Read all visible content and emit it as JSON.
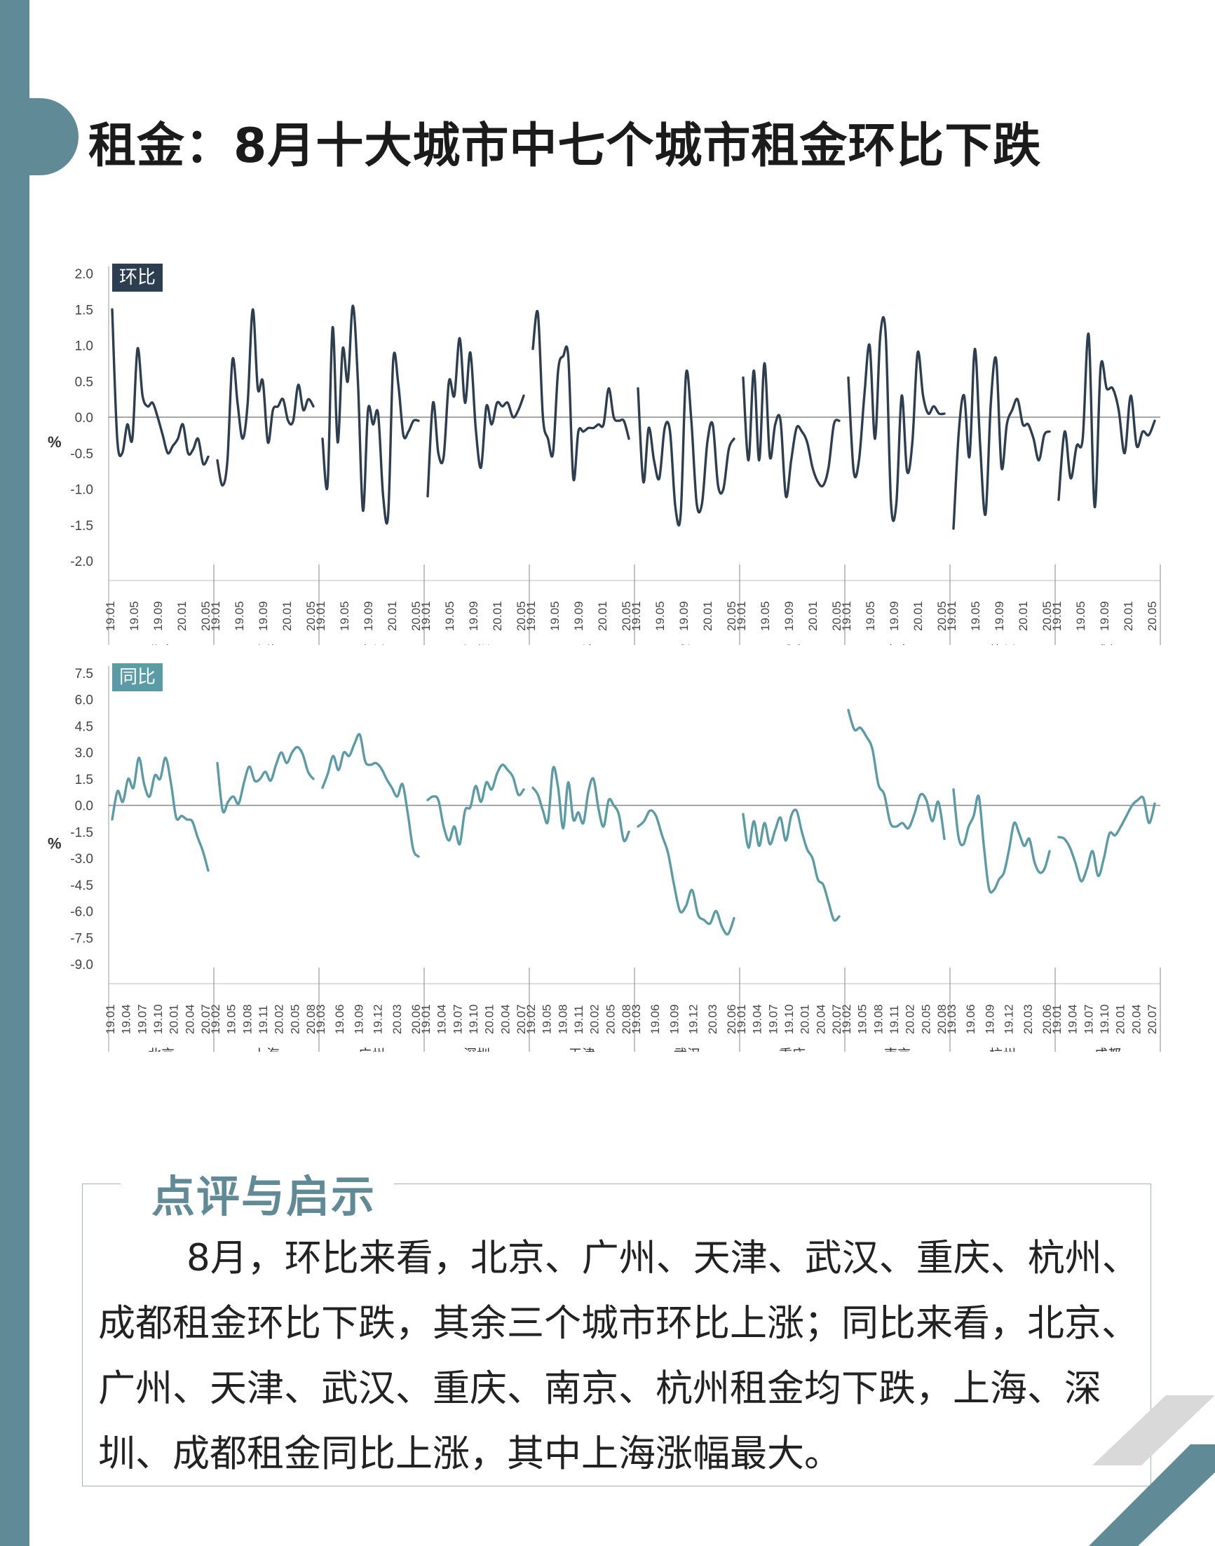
{
  "title": "租金：8月十大城市中七个城市租金环比下跌",
  "comment": {
    "heading": "点评与启示",
    "body": "8月，环比来看，北京、广州、天津、武汉、重庆、杭州、成都租金环比下跌，其余三个城市环比上涨；同比来看，北京、广州、天津、武汉、重庆、南京、杭州租金均下跌，上海、深圳、成都租金同比上涨，其中上海涨幅最大。"
  },
  "colors": {
    "mom_series": "#2c3e50",
    "yoy_series": "#5a9ba6",
    "accent": "#5f8a96"
  },
  "chart_data": [
    {
      "type": "line",
      "tag": "环比",
      "ylabel": "%",
      "ylim": [
        -2.0,
        2.0
      ],
      "y_ticks": [
        "2.0",
        "1.5",
        "1.0",
        "0.5",
        "0.0",
        "-0.5",
        "-1.0",
        "-1.5",
        "-2.0"
      ],
      "x_tick_labels": [
        "19.01",
        "19.05",
        "19.09",
        "20.01",
        "20.05"
      ],
      "groups": [
        {
          "name": "北京",
          "values": [
            1.5,
            -0.3,
            -0.5,
            -0.1,
            -0.3,
            0.95,
            0.3,
            0.15,
            0.2,
            0.0,
            -0.25,
            -0.5,
            -0.4,
            -0.3,
            -0.1,
            -0.5,
            -0.45,
            -0.3,
            -0.65,
            -0.55
          ]
        },
        {
          "name": "上海",
          "values": [
            -0.6,
            -0.95,
            -0.6,
            0.8,
            0.2,
            -0.3,
            0.2,
            1.5,
            0.4,
            0.5,
            -0.35,
            0.1,
            0.15,
            0.25,
            -0.05,
            -0.05,
            0.45,
            0.1,
            0.25,
            0.15
          ]
        },
        {
          "name": "广州",
          "values": [
            -0.3,
            -0.95,
            1.25,
            -0.35,
            0.95,
            0.5,
            1.55,
            0.5,
            -1.3,
            0.1,
            -0.1,
            0.05,
            -1.1,
            -1.35,
            0.8,
            0.45,
            -0.25,
            -0.2,
            -0.05,
            -0.05
          ]
        },
        {
          "name": "深圳",
          "values": [
            -1.1,
            0.2,
            -0.5,
            -0.55,
            0.5,
            0.3,
            1.1,
            0.2,
            0.9,
            -0.15,
            -0.7,
            0.15,
            -0.1,
            0.2,
            0.15,
            0.2,
            0.0,
            0.1,
            0.3
          ]
        },
        {
          "name": "天津",
          "values": [
            0.95,
            1.45,
            0.0,
            -0.3,
            -0.5,
            0.65,
            0.85,
            0.85,
            -0.85,
            -0.2,
            -0.2,
            -0.15,
            -0.15,
            -0.1,
            -0.1,
            0.4,
            0.0,
            -0.05,
            -0.05,
            -0.3
          ]
        },
        {
          "name": "武汉",
          "values": [
            0.4,
            -0.9,
            -0.15,
            -0.6,
            -0.85,
            -0.15,
            -0.2,
            -1.25,
            -1.35,
            0.6,
            -0.05,
            -1.2,
            -1.2,
            -0.35,
            -0.1,
            -0.95,
            -1.0,
            -0.45,
            -0.3
          ]
        },
        {
          "name": "重庆",
          "values": [
            0.55,
            -0.6,
            0.65,
            -0.6,
            0.75,
            -0.55,
            -0.1,
            -0.05,
            -1.1,
            -0.6,
            -0.15,
            -0.2,
            -0.35,
            -0.7,
            -0.9,
            -0.95,
            -0.7,
            -0.1,
            -0.05
          ]
        },
        {
          "name": "南京",
          "values": [
            0.55,
            -0.75,
            -0.6,
            0.3,
            1.0,
            -0.3,
            1.15,
            1.15,
            -1.2,
            -1.2,
            0.3,
            -0.75,
            -0.35,
            0.9,
            0.3,
            0.05,
            0.15,
            0.05,
            0.05
          ]
        },
        {
          "name": "杭州",
          "values": [
            -1.55,
            -0.2,
            0.3,
            -0.55,
            0.95,
            -0.4,
            -1.35,
            0.2,
            0.8,
            -0.7,
            -0.1,
            0.1,
            0.25,
            -0.1,
            -0.1,
            -0.3,
            -0.6,
            -0.25,
            -0.2
          ]
        },
        {
          "name": "成都",
          "values": [
            -1.15,
            -0.2,
            -0.85,
            -0.4,
            -0.3,
            1.15,
            -1.25,
            0.7,
            0.4,
            0.4,
            0.1,
            -0.5,
            0.3,
            -0.4,
            -0.2,
            -0.25,
            -0.05
          ]
        }
      ]
    },
    {
      "type": "line",
      "tag": "同比",
      "ylabel": "%",
      "ylim": [
        -9.0,
        7.5
      ],
      "y_ticks": [
        "7.5",
        "6.0",
        "4.5",
        "3.0",
        "1.5",
        "0.0",
        "-1.5",
        "-3.0",
        "-4.5",
        "-6.0",
        "-7.5",
        "-9.0"
      ],
      "groups": [
        {
          "name": "北京",
          "x_tick_labels": [
            "19.01",
            "19.04",
            "19.07",
            "19.10",
            "20.01",
            "20.04",
            "20.07"
          ],
          "values": [
            -0.8,
            0.8,
            0.2,
            1.5,
            1.0,
            2.7,
            1.2,
            0.5,
            1.7,
            1.5,
            2.7,
            1.3,
            -0.7,
            -0.6,
            -0.8,
            -0.9,
            -1.8,
            -2.6,
            -3.7
          ]
        },
        {
          "name": "上海",
          "x_tick_labels": [
            "19.02",
            "19.05",
            "19.08",
            "19.11",
            "20.02",
            "20.05",
            "20.08"
          ],
          "values": [
            2.4,
            -0.3,
            0.2,
            0.5,
            0.1,
            1.3,
            2.2,
            1.4,
            1.5,
            1.9,
            1.4,
            2.3,
            3.0,
            2.4,
            3.0,
            3.3,
            2.9,
            1.9,
            1.5
          ]
        },
        {
          "name": "广州",
          "x_tick_labels": [
            "19.03",
            "19.06",
            "19.09",
            "19.12",
            "20.03",
            "20.06"
          ],
          "values": [
            1.0,
            1.8,
            2.8,
            2.0,
            3.0,
            2.8,
            3.5,
            4.0,
            2.5,
            2.3,
            2.4,
            2.1,
            1.5,
            1.0,
            0.5,
            1.2,
            -0.5,
            -2.5,
            -2.9
          ]
        },
        {
          "name": "深圳",
          "x_tick_labels": [
            "19.01",
            "19.04",
            "19.07",
            "19.10",
            "20.01",
            "20.04",
            "20.07"
          ],
          "values": [
            0.3,
            0.5,
            0.3,
            -1.2,
            -2.0,
            -1.2,
            -2.2,
            -0.3,
            -0.1,
            1.1,
            0.2,
            1.3,
            0.9,
            1.8,
            2.3,
            2.0,
            1.6,
            0.6,
            0.9
          ]
        },
        {
          "name": "天津",
          "x_tick_labels": [
            "19.02",
            "19.05",
            "19.08",
            "19.11",
            "20.02",
            "20.05",
            "20.08"
          ],
          "values": [
            1.0,
            0.6,
            -0.3,
            -0.9,
            2.1,
            1.0,
            -1.3,
            1.3,
            -0.8,
            -0.4,
            -1.0,
            0.8,
            1.5,
            -0.2,
            -1.2,
            0.3,
            0.0,
            -0.5,
            -2.0,
            -1.5
          ]
        },
        {
          "name": "武汉",
          "x_tick_labels": [
            "19.03",
            "19.06",
            "19.09",
            "19.12",
            "20.03",
            "20.06"
          ],
          "values": [
            -1.2,
            -0.9,
            -0.3,
            -0.6,
            -1.7,
            -2.7,
            -4.5,
            -6.0,
            -5.7,
            -4.8,
            -6.2,
            -6.5,
            -6.7,
            -6.0,
            -6.9,
            -7.3,
            -6.4
          ]
        },
        {
          "name": "重庆",
          "x_tick_labels": [
            "19.01",
            "19.04",
            "19.07",
            "19.10",
            "20.01",
            "20.04",
            "20.07"
          ],
          "values": [
            -0.5,
            -2.4,
            -0.9,
            -2.3,
            -1.0,
            -2.2,
            -1.4,
            -0.7,
            -2.0,
            -0.6,
            -0.3,
            -1.5,
            -2.5,
            -3.0,
            -4.2,
            -4.5,
            -5.5,
            -6.5,
            -6.3
          ]
        },
        {
          "name": "南京",
          "x_tick_labels": [
            "19.02",
            "19.05",
            "19.08",
            "19.11",
            "20.02",
            "20.05",
            "20.08"
          ],
          "values": [
            5.4,
            4.3,
            4.4,
            3.9,
            3.2,
            1.2,
            0.6,
            -1.0,
            -1.2,
            -1.0,
            -1.3,
            -0.5,
            0.6,
            0.3,
            -0.9,
            0.2,
            -1.9
          ]
        },
        {
          "name": "杭州",
          "x_tick_labels": [
            "19.03",
            "19.06",
            "19.09",
            "19.12",
            "20.03",
            "20.06"
          ],
          "values": [
            0.9,
            -1.8,
            -2.2,
            -1.2,
            -0.6,
            0.5,
            -2.3,
            -4.7,
            -4.8,
            -4.2,
            -3.8,
            -2.5,
            -1.0,
            -1.6,
            -2.3,
            -1.9,
            -3.2,
            -3.8,
            -3.6,
            -2.6
          ]
        },
        {
          "name": "成都",
          "x_tick_labels": [
            "19.01",
            "19.04",
            "19.07",
            "19.10",
            "20.01",
            "20.04",
            "20.07"
          ],
          "values": [
            -1.8,
            -1.9,
            -2.4,
            -3.3,
            -4.3,
            -3.6,
            -2.6,
            -4.0,
            -3.0,
            -1.6,
            -1.7,
            -1.2,
            -0.6,
            0.0,
            0.3,
            0.4,
            -1.0,
            0.1
          ]
        }
      ]
    }
  ]
}
